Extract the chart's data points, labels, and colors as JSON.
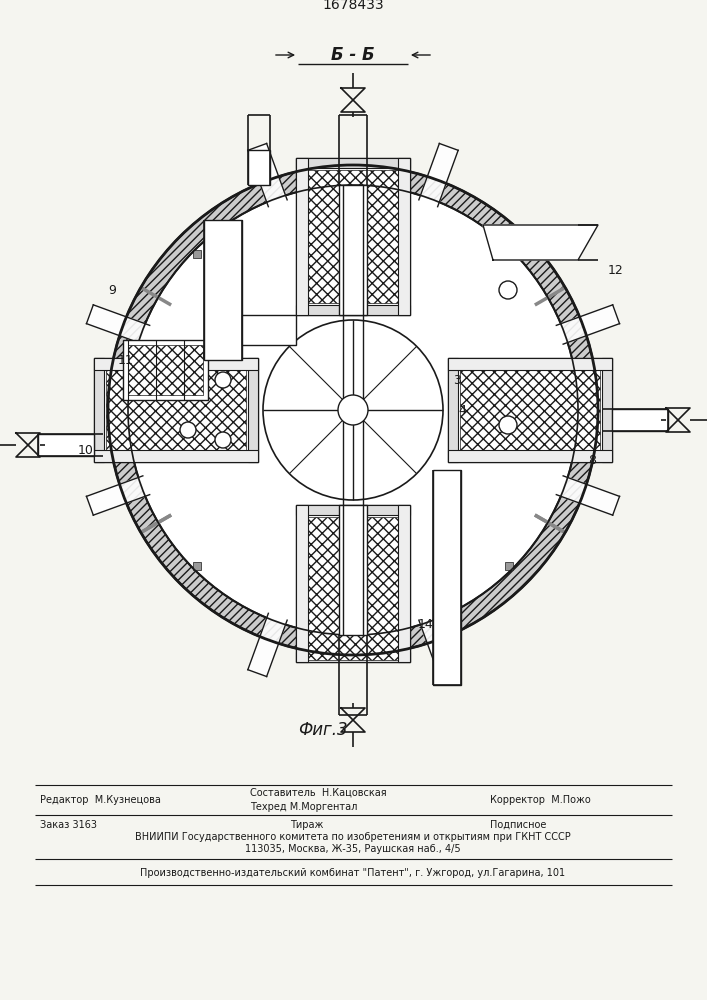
{
  "patent_number": "1678433",
  "section_label": "Б - Б",
  "figure_label": "Фиг.3",
  "footer_editor": "Редактор  М.Кузнецова",
  "footer_comp": "Составитель  Н.Кацовская",
  "footer_tech": "Техред М.Моргентал",
  "footer_corr": "Корректор  М.Пожо",
  "footer_order": "Заказ 3163",
  "footer_tirazh": "Тираж",
  "footer_podp": "Подписное",
  "footer_vniip1": "ВНИИПИ Государственного комитета по изобретениям и открытиям при ГКНТ СССР",
  "footer_vniip2": "113035, Москва, Ж-35, Раушская наб., 4/5",
  "footer_prod": "Производственно-издательский комбинат \"Патент\", г. Ужгород, ул.Гагарина, 101",
  "bg_color": "#f5f5f0",
  "line_color": "#1a1a1a"
}
